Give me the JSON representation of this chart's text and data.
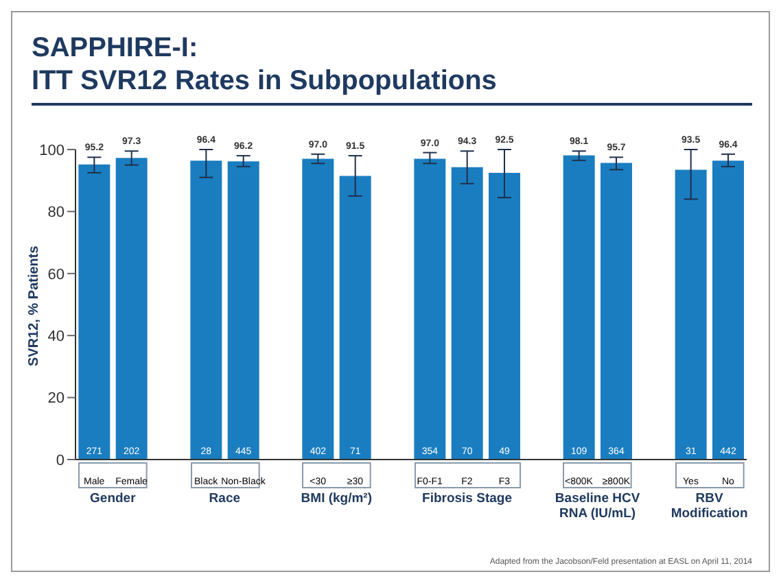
{
  "chart_data": {
    "type": "bar",
    "title": "SAPPHIRE-I:\nITT SVR12 Rates in Subpopulations",
    "ylabel": "SVR12, % Patients",
    "categories": [
      "Male",
      "Female",
      null,
      "Black",
      "Non-Black",
      null,
      "<30",
      "≥30",
      null,
      "F0-F1",
      "F2",
      "F3",
      null,
      "<800K",
      "≥800K",
      null,
      "Yes",
      "No"
    ],
    "values": [
      95.2,
      97.3,
      null,
      96.4,
      96.2,
      null,
      97.0,
      91.5,
      null,
      97.0,
      94.3,
      92.5,
      null,
      98.1,
      95.7,
      null,
      93.5,
      96.4
    ],
    "value_labels": [
      "95.2",
      "97.3",
      null,
      "96.4",
      "96.2",
      null,
      "97.0",
      "91.5",
      null,
      "97.0",
      "94.3",
      "92.5",
      null,
      "98.1",
      "95.7",
      null,
      "93.5",
      "96.4"
    ],
    "errors": [
      [
        92.5,
        97.5
      ],
      [
        95,
        99.5
      ],
      null,
      [
        91,
        100
      ],
      [
        94.5,
        98
      ],
      null,
      [
        95.5,
        98.5
      ],
      [
        85,
        98
      ],
      null,
      [
        95.5,
        99
      ],
      [
        89,
        99.5
      ],
      [
        84.5,
        100
      ],
      null,
      [
        96.5,
        99.5
      ],
      [
        93.5,
        97.5
      ],
      null,
      [
        84,
        100
      ],
      [
        94.5,
        98.5
      ]
    ],
    "color": "#1a7dc0",
    "ylim": [
      0,
      100
    ],
    "yticks": [
      0,
      20,
      40,
      60,
      80,
      100
    ],
    "annotations": [
      "271",
      "202",
      "28",
      "445",
      "402",
      "71",
      "354",
      "70",
      "49",
      "109",
      "364",
      "31",
      "442",
      "Gender",
      "Race",
      "BMI (kg/m²)",
      "Fibrosis Stage",
      "Baseline HCV RNA (IU/mL)",
      "RBV Modification",
      "Adapted from the Jacobson/Feld presentation at EASL on April 11, 2014"
    ]
  }
}
